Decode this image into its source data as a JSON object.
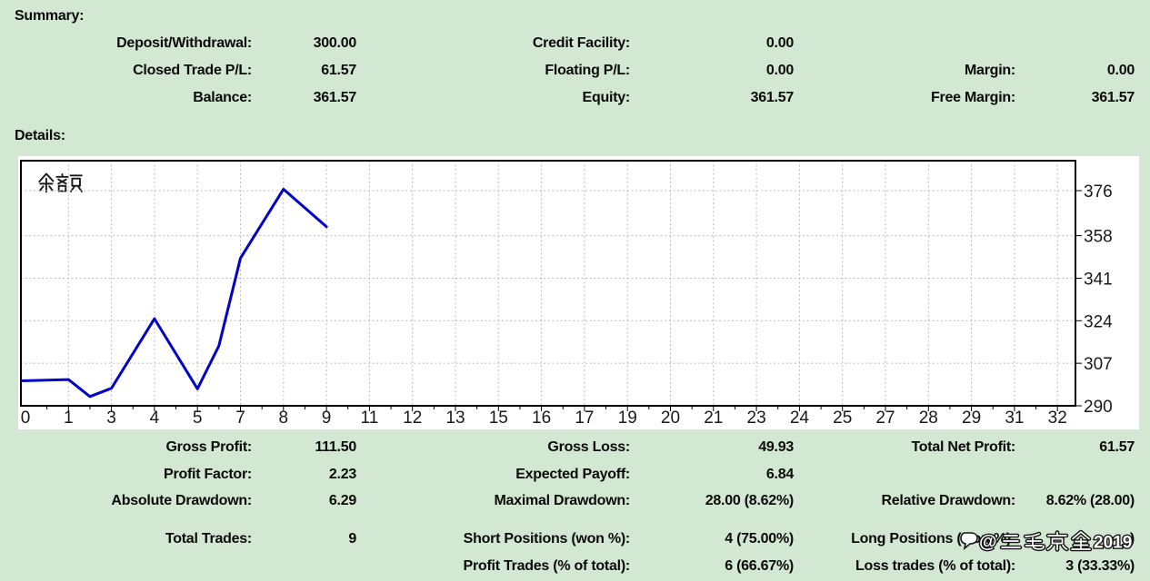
{
  "page": {
    "background": "#d2e8d2",
    "panel_background": "#ffffff",
    "text_color": "#0b0b0b"
  },
  "summary": {
    "heading": "Summary:",
    "rows": [
      {
        "c1_label": "Deposit/Withdrawal:",
        "c1_value": "300.00",
        "c2_label": "Credit Facility:",
        "c2_value": "0.00",
        "c3_label": "",
        "c3_value": ""
      },
      {
        "c1_label": "Closed Trade P/L:",
        "c1_value": "61.57",
        "c2_label": "Floating P/L:",
        "c2_value": "0.00",
        "c3_label": "Margin:",
        "c3_value": "0.00"
      },
      {
        "c1_label": "Balance:",
        "c1_value": "361.57",
        "c2_label": "Equity:",
        "c2_value": "361.57",
        "c3_label": "Free Margin:",
        "c3_value": "361.57"
      }
    ]
  },
  "details": {
    "heading": "Details:",
    "stat_rows": [
      {
        "c1_label": "Gross Profit:",
        "c1_value": "111.50",
        "c2_label": "Gross Loss:",
        "c2_value": "49.93",
        "c3_label": "Total Net Profit:",
        "c3_value": "61.57"
      },
      {
        "c1_label": "Profit Factor:",
        "c1_value": "2.23",
        "c2_label": "Expected Payoff:",
        "c2_value": "6.84",
        "c3_label": "",
        "c3_value": ""
      },
      {
        "c1_label": "Absolute Drawdown:",
        "c1_value": "6.29",
        "c2_label": "Maximal Drawdown:",
        "c2_value": "28.00 (8.62%)",
        "c3_label": "Relative Drawdown:",
        "c3_value": "8.62% (28.00)"
      }
    ],
    "trade_rows": [
      {
        "c1_label": "Total Trades:",
        "c1_value": "9",
        "c2_label": "Short Positions (won %):",
        "c2_value": "4 (75.00%)",
        "c3_label": "Long Positions (won %):",
        "c3_value": ")"
      },
      {
        "c1_label": "",
        "c1_value": "",
        "c2_label": "Profit Trades (% of total):",
        "c2_value": "6 (66.67%)",
        "c3_label": "Loss trades (% of total):",
        "c3_value": "3 (33.33%)"
      }
    ]
  },
  "watermark": {
    "icon": "speech-bubble",
    "at_sign": "@",
    "cjk_text": "三毛京金",
    "year": "2019",
    "full_text": "@三毛京金2019"
  },
  "chart_data": {
    "type": "line",
    "title": "余额",
    "series": [
      {
        "name": "余额",
        "x": [
          0,
          1,
          2,
          3,
          4,
          5,
          6,
          7,
          8,
          9
        ],
        "y": [
          300.0,
          300.5,
          293.71,
          297.0,
          324.8,
          296.8,
          314.0,
          349.0,
          376.57,
          361.57
        ]
      }
    ],
    "x_axis": {
      "labels": [
        "0",
        "1",
        "3",
        "4",
        "5",
        "7",
        "8",
        "9",
        "11",
        "12",
        "13",
        "15",
        "16",
        "17",
        "19",
        "20",
        "21",
        "23",
        "24",
        "25",
        "27",
        "28",
        "29",
        "31",
        "32"
      ]
    },
    "y_axis": {
      "ticks": [
        290,
        307,
        324,
        341,
        358,
        376
      ],
      "range": [
        290,
        383
      ]
    },
    "grid": true,
    "grid_style": "dashed",
    "legend_position": "none",
    "line_color": "#0101c8",
    "axis_label_color": "#1a1a1a"
  }
}
